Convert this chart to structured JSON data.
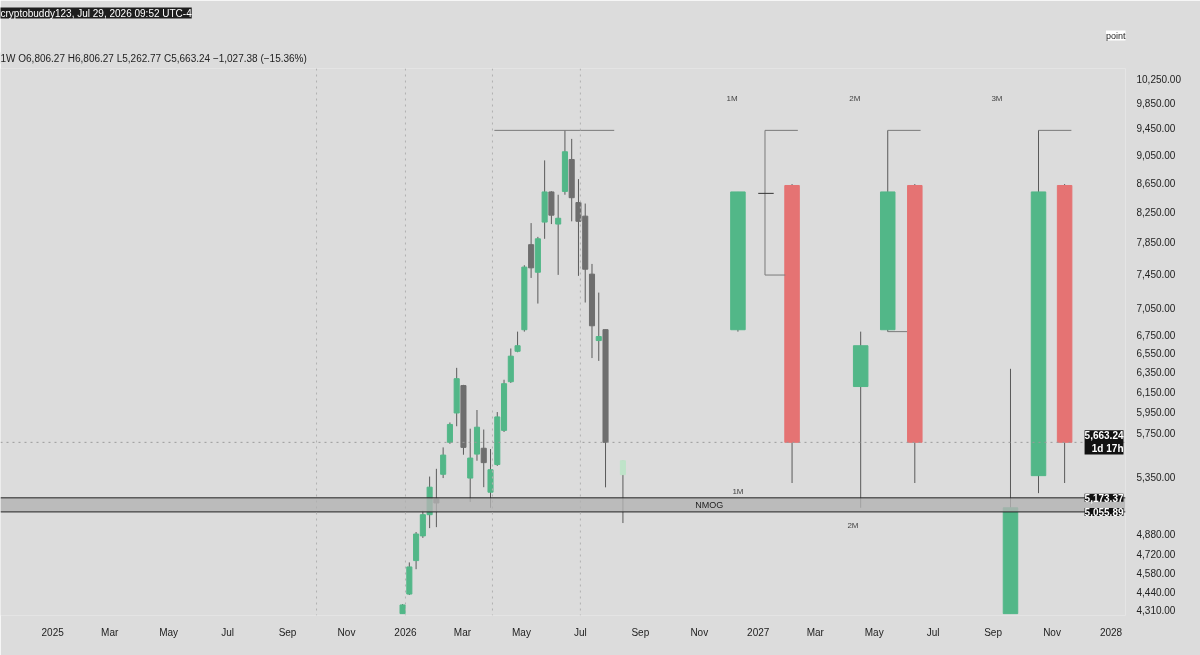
{
  "chart_data": {
    "type": "candlestick",
    "title": "1W  O6,806.27  H6,806.27  L5,262.77  C5,663.24  −1,027.38 (−15.36%)",
    "annotations": [
      "cryptobuddy123, Jul 29, 2026 09:52 UTC-4",
      "1M",
      "2M",
      "3M",
      "1M",
      "2M",
      "point"
    ],
    "log": "y",
    "grid": false,
    "xlim": [
      "2024-11-08",
      "2028-01-16"
    ],
    "xticks": [
      {
        "value": "2025-01-01",
        "label": "2025"
      },
      {
        "value": "2025-03-01",
        "label": "Mar"
      },
      {
        "value": "2025-05-01",
        "label": "May"
      },
      {
        "value": "2025-07-01",
        "label": "Jul"
      },
      {
        "value": "2025-09-01",
        "label": "Sep"
      },
      {
        "value": "2025-11-01",
        "label": "Nov"
      },
      {
        "value": "2026-01-01",
        "label": "2026"
      },
      {
        "value": "2026-03-01",
        "label": "Mar"
      },
      {
        "value": "2026-05-01",
        "label": "May"
      },
      {
        "value": "2026-07-01",
        "label": "Jul"
      },
      {
        "value": "2026-09-01",
        "label": "Sep"
      },
      {
        "value": "2026-11-01",
        "label": "Nov"
      },
      {
        "value": "2027-01-01",
        "label": "2027"
      },
      {
        "value": "2027-03-01",
        "label": "Mar"
      },
      {
        "value": "2027-05-01",
        "label": "May"
      },
      {
        "value": "2027-07-01",
        "label": "Jul"
      },
      {
        "value": "2027-09-01",
        "label": "Sep"
      },
      {
        "value": "2027-11-01",
        "label": "Nov"
      },
      {
        "value": "2028-01-01",
        "label": "2028"
      }
    ],
    "ylim": [
      4270,
      10420
    ],
    "yticks": [
      {
        "value": 4310,
        "label": "4,310.00"
      },
      {
        "value": 4440,
        "label": "4,440.00"
      },
      {
        "value": 4580,
        "label": "4,580.00"
      },
      {
        "value": 4720,
        "label": "4,720.00"
      },
      {
        "value": 4880,
        "label": "4,880.00"
      },
      {
        "value": 5350,
        "label": "5,350.00"
      },
      {
        "value": 5750,
        "label": "5,750.00"
      },
      {
        "value": 5950,
        "label": "5,950.00"
      },
      {
        "value": 6150,
        "label": "6,150.00"
      },
      {
        "value": 6350,
        "label": "6,350.00"
      },
      {
        "value": 6550,
        "label": "6,550.00"
      },
      {
        "value": 6750,
        "label": "6,750.00"
      },
      {
        "value": 7050,
        "label": "7,050.00"
      },
      {
        "value": 7450,
        "label": "7,450.00"
      },
      {
        "value": 7850,
        "label": "7,850.00"
      },
      {
        "value": 8250,
        "label": "8,250.00"
      },
      {
        "value": 8650,
        "label": "8,650.00"
      },
      {
        "value": 9050,
        "label": "9,050.00"
      },
      {
        "value": 9450,
        "label": "9,450.00"
      },
      {
        "value": 9850,
        "label": "9,850.00"
      },
      {
        "value": 10250,
        "label": "10,250.00"
      }
    ],
    "ref_lines": [
      {
        "axis": "y",
        "value": 5173.37,
        "label": "5,173.37",
        "color": "#222222",
        "line_style": "solid"
      },
      {
        "axis": "y",
        "value": 5055.89,
        "label": "5,055.89",
        "color": "#222222",
        "line_style": "solid"
      },
      {
        "axis": "y",
        "value": 5663.24,
        "label": "5,663.24\n1d 17h",
        "color": "#9a9a9a",
        "line_style": "dotted"
      },
      {
        "axis": "x",
        "value": "2025-10-01",
        "color": "#b0b0b0",
        "line_style": "dotted"
      },
      {
        "axis": "x",
        "value": "2026-01-01",
        "color": "#b0b0b0",
        "line_style": "dotted"
      },
      {
        "axis": "x",
        "value": "2026-04-01",
        "color": "#b0b0b0",
        "line_style": "dotted"
      },
      {
        "axis": "x",
        "value": "2026-07-01",
        "color": "#b0b0b0",
        "line_style": "dotted"
      }
    ],
    "bands": [
      {
        "axis": "y",
        "from": 5055.89,
        "to": 5173.37,
        "label": "NMOG",
        "color": "#b3b3b3"
      }
    ],
    "series": [
      {
        "x": [
          "2025-12-29",
          "2026-01-05",
          "2026-01-12",
          "2026-01-19",
          "2026-01-26",
          "2026-02-02",
          "2026-02-09",
          "2026-02-16",
          "2026-02-23",
          "2026-03-02",
          "2026-03-09",
          "2026-03-16",
          "2026-03-23",
          "2026-03-30",
          "2026-04-06",
          "2026-04-13",
          "2026-04-20",
          "2026-04-27",
          "2026-05-04",
          "2026-05-11",
          "2026-05-18",
          "2026-05-25",
          "2026-06-01",
          "2026-06-08",
          "2026-06-15",
          "2026-06-22",
          "2026-06-29",
          "2026-07-06",
          "2026-07-13",
          "2026-07-20",
          "2026-07-27",
          "2026-08-14"
        ],
        "ohlc": [
          [
            4283,
            4350,
            4283,
            4344
          ],
          [
            4422,
            4656,
            4415,
            4622
          ],
          [
            4670,
            4893,
            4605,
            4877
          ],
          [
            4862,
            5066,
            4846,
            5033
          ],
          [
            5033,
            5356,
            4924,
            5264
          ],
          [
            5163,
            5424,
            4932,
            5130
          ],
          [
            5376,
            5617,
            5343,
            5547
          ],
          [
            5664,
            5850,
            5650,
            5831
          ],
          [
            5941,
            6395,
            5814,
            6283
          ],
          [
            6213,
            6220,
            5550,
            5617
          ],
          [
            5343,
            5791,
            5139,
            5520
          ],
          [
            5556,
            5970,
            5496,
            5805
          ],
          [
            5609,
            5783,
            5264,
            5479
          ],
          [
            5221,
            5602,
            5090,
            5416
          ],
          [
            5462,
            5950,
            5450,
            5903
          ],
          [
            5775,
            6272,
            5760,
            6232
          ],
          [
            6252,
            6600,
            6240,
            6518
          ],
          [
            6570,
            6784,
            6560,
            6630
          ],
          [
            6805,
            7560,
            6784,
            7537
          ],
          [
            7818,
            8098,
            7405,
            7528
          ],
          [
            7474,
            7918,
            7102,
            7893
          ],
          [
            8111,
            8970,
            7893,
            8520
          ],
          [
            8520,
            8530,
            8085,
            8203
          ],
          [
            8085,
            8481,
            7442,
            8162
          ],
          [
            8527,
            9420,
            8481,
            9097
          ],
          [
            8983,
            9290,
            8121,
            8440
          ],
          [
            8374,
            8700,
            7430,
            8121
          ],
          [
            8190,
            8360,
            7114,
            7511
          ],
          [
            7451,
            7576,
            6498,
            6849
          ],
          [
            6686,
            7230,
            6468,
            6730
          ],
          [
            6806.27,
            6806.27,
            5262.77,
            5663.24
          ],
          [
            5373,
            5496,
            4965,
            5496
          ]
        ],
        "colors": [
          "#52b788",
          "#52b788",
          "#52b788",
          "#52b788",
          "#52b788",
          "#6e6e6e",
          "#52b788",
          "#52b788",
          "#52b788",
          "#6e6e6e",
          "#52b788",
          "#52b788",
          "#6e6e6e",
          "#52b788",
          "#52b788",
          "#52b788",
          "#52b788",
          "#52b788",
          "#52b788",
          "#6e6e6e",
          "#52b788",
          "#52b788",
          "#6e6e6e",
          "#52b788",
          "#52b788",
          "#6e6e6e",
          "#6e6e6e",
          "#6e6e6e",
          "#6e6e6e",
          "#52b788",
          "#6e6e6e",
          "#bfe3c9"
        ]
      },
      {
        "x": [
          "2026-12-11",
          "2027-02-05",
          "2027-04-17",
          "2027-05-15",
          "2027-06-12",
          "2027-09-19",
          "2027-10-18",
          "2027-11-14"
        ],
        "ohlc": [
          [
            6805,
            8520,
            6784,
            8520
          ],
          [
            8610,
            8630,
            5300,
            5663.24
          ],
          [
            6203,
            6784,
            5090,
            6630
          ],
          [
            6805,
            9420,
            6784,
            8520
          ],
          [
            8610,
            8630,
            5300,
            5663.24
          ],
          [
            4283,
            6385,
            4283,
            5090
          ],
          [
            5364,
            9420,
            5213,
            8520
          ],
          [
            8610,
            8630,
            5300,
            5663.24
          ]
        ],
        "colors": [
          "#52b788",
          "#e57373",
          "#52b788",
          "#52b788",
          "#e57373",
          "#52b788",
          "#52b788",
          "#e57373"
        ]
      },
      {
        "type": "line",
        "color": "#7a7a7a",
        "x": [
          "2026-04-03",
          "2026-08-05"
        ],
        "values": [
          9420,
          9420
        ]
      },
      {
        "type": "line",
        "color": "#7a7a7a",
        "x": [
          "2027-02-11",
          "2027-01-08",
          "2027-01-08",
          "2027-01-29"
        ],
        "values": [
          9420,
          9420,
          7440,
          7440
        ]
      },
      {
        "type": "line",
        "color": "#333333",
        "x": [
          "2027-01-01",
          "2027-01-17"
        ],
        "values": [
          8500,
          8500
        ]
      },
      {
        "type": "line",
        "color": "#7a7a7a",
        "x": [
          "2027-05-15",
          "2027-06-18"
        ],
        "values": [
          9420,
          9420
        ]
      },
      {
        "type": "line",
        "color": "#7a7a7a",
        "x": [
          "2027-05-15",
          "2027-06-04"
        ],
        "values": [
          6784,
          6784
        ]
      },
      {
        "type": "line",
        "color": "#7a7a7a",
        "x": [
          "2027-10-18",
          "2027-11-21"
        ],
        "values": [
          9420,
          9420
        ]
      }
    ]
  }
}
